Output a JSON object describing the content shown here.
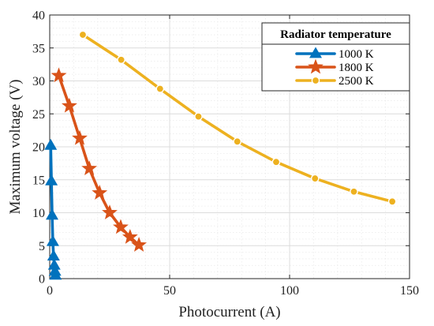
{
  "chart_data": {
    "type": "line",
    "xlabel": "Photocurrent (A)",
    "ylabel": "Maximum voltage (V)",
    "xlim": [
      0,
      150
    ],
    "ylim": [
      0,
      40
    ],
    "xticks": [
      0,
      50,
      100,
      150
    ],
    "yticks": [
      0,
      5,
      10,
      15,
      20,
      25,
      30,
      35,
      40
    ],
    "grid": true,
    "legend": {
      "title": "Radiator temperature",
      "position": "top-right"
    },
    "series": [
      {
        "name": "1000 K",
        "color": "#0072BD",
        "marker": "triangle",
        "x": [
          0.4,
          0.7,
          1.0,
          1.3,
          1.6,
          1.9,
          2.2,
          2.4
        ],
        "y": [
          20.2,
          14.8,
          9.6,
          5.6,
          3.4,
          2.0,
          1.1,
          0.5
        ]
      },
      {
        "name": "1800 K",
        "color": "#D95319",
        "marker": "star",
        "x": [
          3.8,
          8.2,
          12.5,
          16.5,
          20.8,
          25.0,
          29.6,
          33.5,
          37.2
        ],
        "y": [
          30.8,
          26.2,
          21.3,
          16.7,
          13.0,
          10.0,
          7.8,
          6.3,
          5.1
        ]
      },
      {
        "name": "2500 K",
        "color": "#EDB120",
        "marker": "circle",
        "x": [
          13.8,
          29.8,
          46.0,
          62.0,
          78.2,
          94.4,
          110.6,
          126.8,
          142.8
        ],
        "y": [
          37.0,
          33.2,
          28.8,
          24.6,
          20.8,
          17.7,
          15.2,
          13.2,
          11.7
        ]
      }
    ]
  }
}
